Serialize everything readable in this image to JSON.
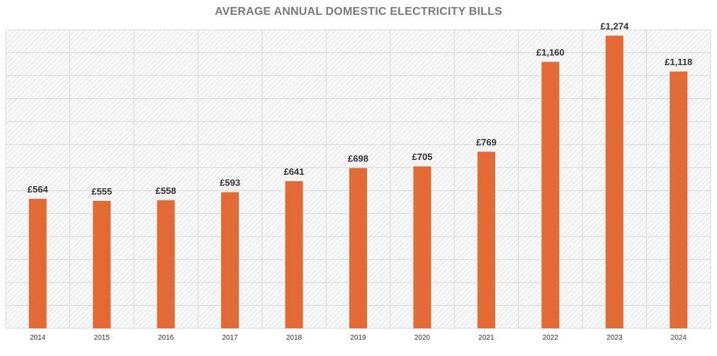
{
  "chart_data": {
    "type": "bar",
    "title": "AVERAGE ANNUAL DOMESTIC ELECTRICITY BILLS",
    "xlabel": "",
    "ylabel": "",
    "categories": [
      "2014",
      "2015",
      "2016",
      "2017",
      "2018",
      "2019",
      "2020",
      "2021",
      "2022",
      "2023",
      "2024"
    ],
    "values": [
      564,
      555,
      558,
      593,
      641,
      698,
      705,
      769,
      1160,
      1274,
      1118
    ],
    "value_labels": [
      "£564",
      "£555",
      "£558",
      "£593",
      "£641",
      "£698",
      "£705",
      "£769",
      "£1,160",
      "£1,274",
      "£1,118"
    ],
    "ylim": [
      0,
      1300
    ],
    "gridline_step": 100,
    "grid": true,
    "legend": "none",
    "colors": {
      "bar": "#E46A35",
      "title": "#7a7a7a",
      "grid": "#d9d9d9"
    }
  }
}
